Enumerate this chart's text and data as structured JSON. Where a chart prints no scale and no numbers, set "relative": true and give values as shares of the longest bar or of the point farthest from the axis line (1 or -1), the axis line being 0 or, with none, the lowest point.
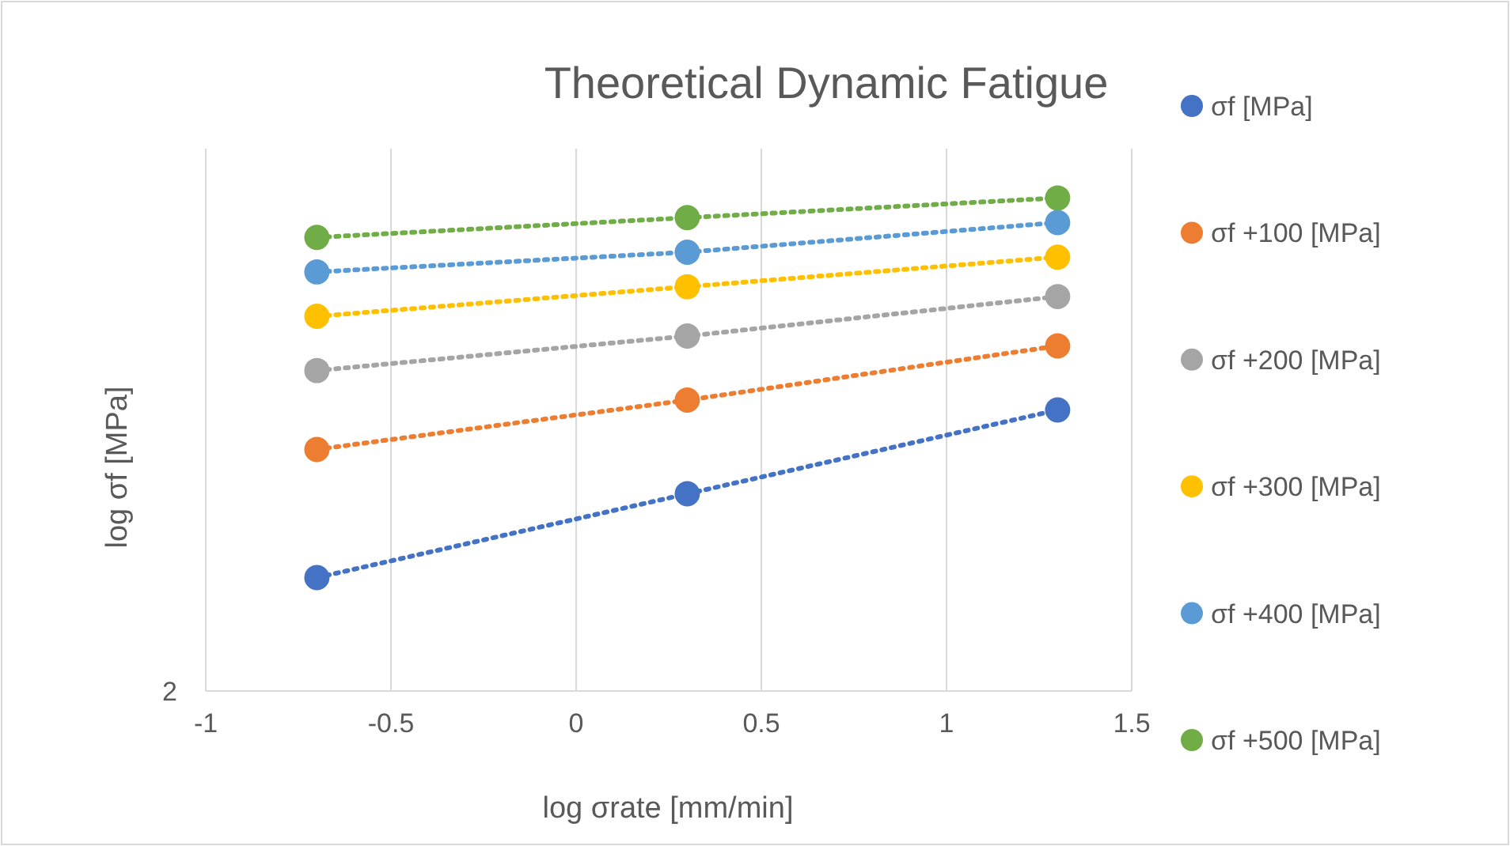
{
  "chart_data": {
    "type": "line",
    "title": "Theoretical Dynamic Fatigue",
    "xlabel": "log σrate [mm/min]",
    "ylabel": "log σf [MPa]",
    "relative": true,
    "annotations": [
      "2"
    ],
    "x": [
      -0.7,
      0.3,
      1.3
    ],
    "xlim": [
      -1,
      1.5
    ],
    "xticks": [
      -1,
      -0.5,
      0,
      0.5,
      1,
      1.5
    ],
    "grid": "x",
    "legend": "right",
    "marker": "circle",
    "line_style": "dotted",
    "series": [
      {
        "name": "σf [MPa]",
        "color": "#4472c4",
        "values": [
          0.23,
          0.4,
          0.57
        ]
      },
      {
        "name": "σf +100 [MPa]",
        "color": "#ed7d31",
        "values": [
          0.49,
          0.59,
          0.7
        ]
      },
      {
        "name": "σf +200 [MPa]",
        "color": "#a5a5a5",
        "values": [
          0.65,
          0.72,
          0.8
        ]
      },
      {
        "name": "σf +300 [MPa]",
        "color": "#ffc000",
        "values": [
          0.76,
          0.82,
          0.88
        ]
      },
      {
        "name": "σf +400 [MPa]",
        "color": "#5b9bd5",
        "values": [
          0.85,
          0.89,
          0.95
        ]
      },
      {
        "name": "σf +500 [MPa]",
        "color": "#70ad47",
        "values": [
          0.92,
          0.96,
          1
        ]
      }
    ]
  }
}
